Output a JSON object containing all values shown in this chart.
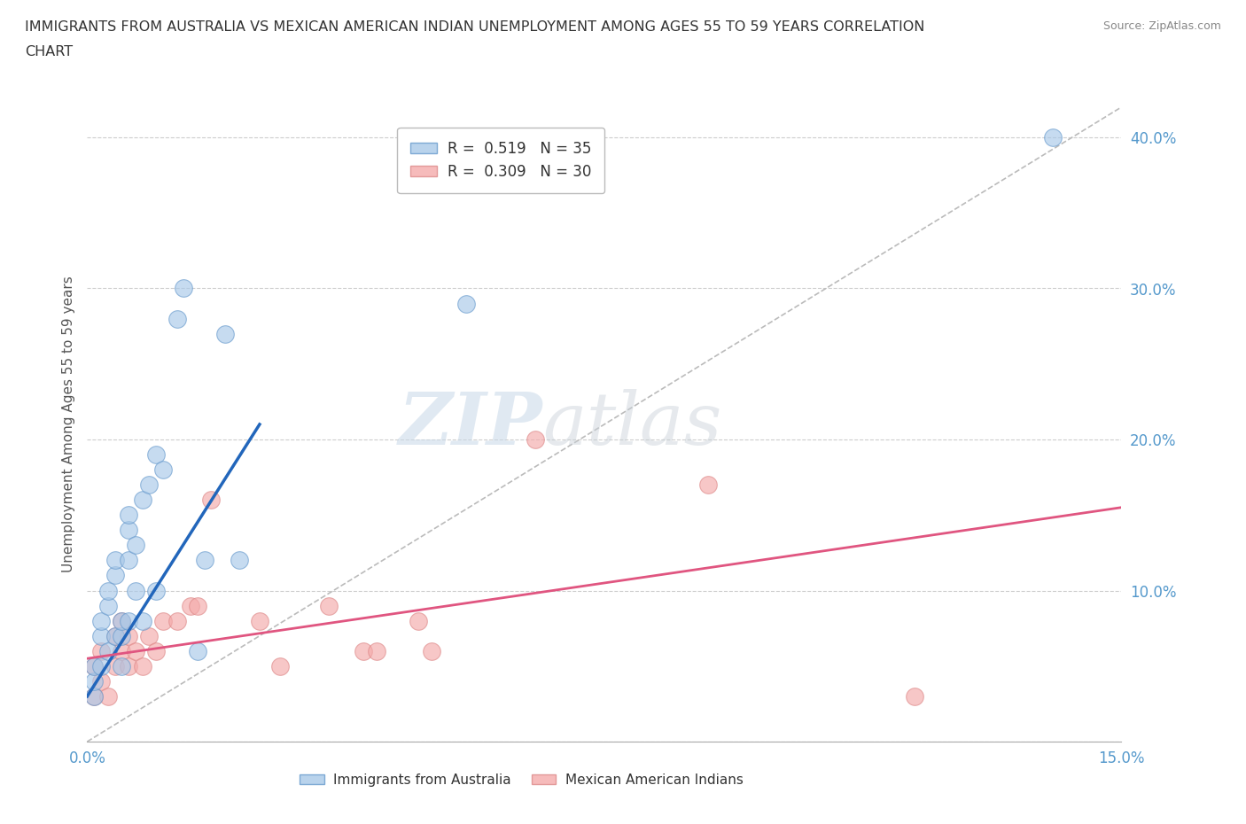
{
  "title_line1": "IMMIGRANTS FROM AUSTRALIA VS MEXICAN AMERICAN INDIAN UNEMPLOYMENT AMONG AGES 55 TO 59 YEARS CORRELATION",
  "title_line2": "CHART",
  "source_text": "Source: ZipAtlas.com",
  "ylabel": "Unemployment Among Ages 55 to 59 years",
  "xlim": [
    0.0,
    0.15
  ],
  "ylim": [
    0.0,
    0.42
  ],
  "background_color": "#ffffff",
  "grid_color": "#c8c8c8",
  "watermark_zip": "ZIP",
  "watermark_atlas": "atlas",
  "blue_color": "#a8c8e8",
  "blue_edge_color": "#6699cc",
  "pink_color": "#f4aaaa",
  "pink_edge_color": "#dd8888",
  "blue_line_color": "#2266bb",
  "pink_line_color": "#e05580",
  "diagonal_color": "#bbbbbb",
  "australia_x": [
    0.001,
    0.001,
    0.001,
    0.002,
    0.002,
    0.002,
    0.003,
    0.003,
    0.003,
    0.004,
    0.004,
    0.004,
    0.005,
    0.005,
    0.005,
    0.006,
    0.006,
    0.006,
    0.006,
    0.007,
    0.007,
    0.008,
    0.008,
    0.009,
    0.01,
    0.01,
    0.011,
    0.013,
    0.014,
    0.016,
    0.017,
    0.02,
    0.022,
    0.055,
    0.14
  ],
  "australia_y": [
    0.03,
    0.04,
    0.05,
    0.05,
    0.07,
    0.08,
    0.06,
    0.09,
    0.1,
    0.07,
    0.11,
    0.12,
    0.05,
    0.07,
    0.08,
    0.08,
    0.12,
    0.14,
    0.15,
    0.1,
    0.13,
    0.08,
    0.16,
    0.17,
    0.1,
    0.19,
    0.18,
    0.28,
    0.3,
    0.06,
    0.12,
    0.27,
    0.12,
    0.29,
    0.4
  ],
  "mexican_x": [
    0.001,
    0.001,
    0.002,
    0.002,
    0.003,
    0.004,
    0.004,
    0.005,
    0.005,
    0.006,
    0.006,
    0.007,
    0.008,
    0.009,
    0.01,
    0.011,
    0.013,
    0.015,
    0.016,
    0.018,
    0.025,
    0.028,
    0.035,
    0.04,
    0.042,
    0.048,
    0.05,
    0.065,
    0.09,
    0.12
  ],
  "mexican_y": [
    0.03,
    0.05,
    0.04,
    0.06,
    0.03,
    0.05,
    0.07,
    0.06,
    0.08,
    0.05,
    0.07,
    0.06,
    0.05,
    0.07,
    0.06,
    0.08,
    0.08,
    0.09,
    0.09,
    0.16,
    0.08,
    0.05,
    0.09,
    0.06,
    0.06,
    0.08,
    0.06,
    0.2,
    0.17,
    0.03
  ],
  "blue_line_x": [
    0.0,
    0.025
  ],
  "blue_line_y": [
    0.03,
    0.21
  ],
  "pink_line_x": [
    0.0,
    0.15
  ],
  "pink_line_y": [
    0.055,
    0.155
  ]
}
